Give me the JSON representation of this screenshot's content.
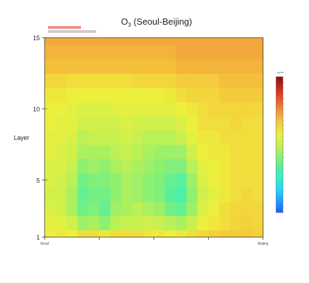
{
  "chart_data": {
    "type": "heatmap",
    "title": "O",
    "title_sub": "3",
    "title_rest": " (Seoul-Beijing)",
    "ylabel": "Layer",
    "y_ticks": [
      "1",
      "5",
      "10",
      "15"
    ],
    "ylim": [
      1,
      15
    ],
    "x_ticks": [
      "Seoul",
      "Beijing"
    ],
    "x_tick_positions": [
      0.0,
      1.0
    ],
    "interior_ticks": [
      0.25,
      0.5,
      0.75
    ],
    "notes": {
      "line1_color": "#e02020",
      "line2_color": "#444444"
    },
    "colorbar": {
      "unit": "ppbV",
      "min": 0,
      "max": 100,
      "ticks": 25,
      "colors": [
        "#1e5bff",
        "#1e9cff",
        "#1ed6ff",
        "#2ef0d0",
        "#52f0a0",
        "#8cf070",
        "#c8f050",
        "#eef03c",
        "#f5c83c",
        "#f0963c",
        "#e85a28",
        "#d0281e",
        "#8c1010"
      ]
    },
    "field_layers": [
      [
        58,
        60,
        58,
        62,
        62,
        60,
        62,
        62,
        62,
        60,
        60,
        58,
        60,
        62,
        64,
        65,
        66,
        66,
        66,
        65
      ],
      [
        56,
        56,
        52,
        44,
        46,
        42,
        48,
        50,
        50,
        52,
        50,
        48,
        46,
        50,
        58,
        60,
        62,
        64,
        65,
        64
      ],
      [
        54,
        52,
        46,
        38,
        40,
        36,
        44,
        46,
        48,
        46,
        44,
        38,
        36,
        44,
        54,
        58,
        62,
        64,
        64,
        64
      ],
      [
        52,
        52,
        46,
        36,
        38,
        38,
        42,
        46,
        44,
        42,
        40,
        34,
        32,
        42,
        52,
        56,
        60,
        62,
        64,
        62
      ],
      [
        54,
        52,
        48,
        38,
        40,
        40,
        42,
        46,
        44,
        42,
        40,
        36,
        34,
        44,
        54,
        58,
        60,
        62,
        62,
        62
      ],
      [
        54,
        54,
        50,
        42,
        44,
        42,
        46,
        48,
        46,
        44,
        42,
        40,
        40,
        48,
        56,
        58,
        60,
        62,
        62,
        62
      ],
      [
        56,
        54,
        52,
        46,
        46,
        46,
        48,
        50,
        48,
        46,
        44,
        44,
        44,
        52,
        58,
        60,
        60,
        62,
        62,
        62
      ],
      [
        56,
        56,
        54,
        48,
        50,
        50,
        50,
        52,
        50,
        48,
        48,
        48,
        50,
        56,
        60,
        60,
        62,
        62,
        62,
        62
      ],
      [
        58,
        56,
        56,
        52,
        52,
        52,
        52,
        54,
        52,
        52,
        52,
        52,
        54,
        58,
        62,
        62,
        62,
        64,
        62,
        62
      ],
      [
        58,
        58,
        56,
        54,
        54,
        54,
        56,
        56,
        56,
        56,
        56,
        56,
        58,
        60,
        62,
        64,
        64,
        64,
        64,
        64
      ],
      [
        60,
        60,
        58,
        58,
        58,
        58,
        58,
        58,
        58,
        58,
        58,
        60,
        62,
        64,
        64,
        64,
        66,
        66,
        66,
        66
      ],
      [
        64,
        64,
        62,
        62,
        62,
        62,
        62,
        62,
        64,
        64,
        64,
        64,
        66,
        66,
        66,
        66,
        68,
        68,
        68,
        68
      ],
      [
        68,
        68,
        68,
        68,
        68,
        68,
        68,
        68,
        68,
        68,
        68,
        68,
        70,
        70,
        70,
        70,
        70,
        70,
        70,
        70
      ],
      [
        70,
        70,
        70,
        70,
        70,
        70,
        70,
        70,
        70,
        70,
        70,
        70,
        72,
        72,
        72,
        72,
        72,
        72,
        72,
        72
      ],
      [
        72,
        72,
        72,
        72,
        72,
        72,
        72,
        72,
        72,
        72,
        72,
        72,
        72,
        72,
        72,
        72,
        72,
        72,
        72,
        72
      ]
    ]
  }
}
